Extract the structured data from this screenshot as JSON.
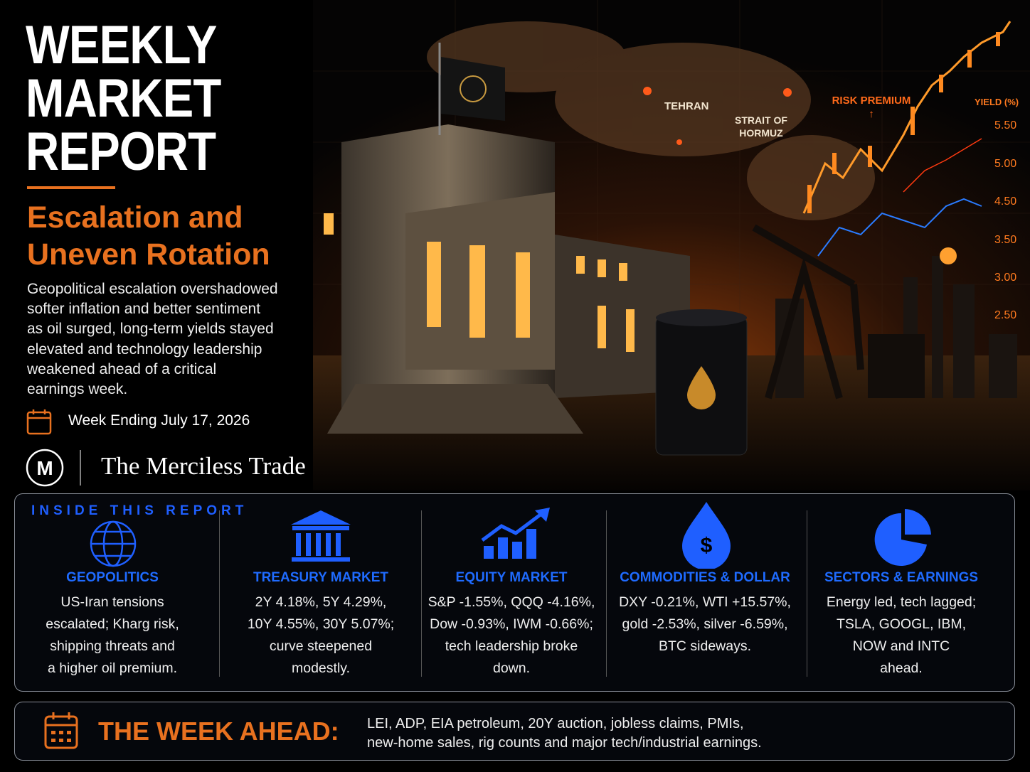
{
  "header": {
    "title_lines": [
      "WEEKLY",
      "MARKET",
      "REPORT"
    ],
    "subtitle_lines": [
      "Escalation and",
      "Uneven Rotation"
    ],
    "description_lines": [
      "Geopolitical escalation overshadowed",
      "softer inflation and better sentiment",
      "as oil surged, long-term yields stayed",
      "elevated and technology leadership",
      "weakened ahead of a critical",
      "earnings week."
    ],
    "date": "Week Ending July 17, 2026",
    "brand_initial": "M",
    "brand": "The Merciless Trade"
  },
  "illustration": {
    "map_labels": [
      "TEHRAN",
      "STRAIT OF HORMUZ",
      "RISK PREMIUM ↑"
    ],
    "axis_title": "YIELD (%)",
    "axis_labels": [
      "5.50",
      "5.00",
      "4.50",
      "3.50",
      "3.00",
      "2.50"
    ]
  },
  "inside": {
    "title": "INSIDE THIS REPORT",
    "sections": [
      {
        "title": "GEOPOLITICS",
        "lines": [
          "US-Iran tensions",
          "escalated; Kharg risk,",
          "shipping threats and",
          "a higher oil premium."
        ]
      },
      {
        "title": "TREASURY MARKET",
        "lines": [
          "2Y 4.18%, 5Y 4.29%,",
          "10Y 4.55%, 30Y 5.07%;",
          "curve steepened",
          "modestly."
        ]
      },
      {
        "title": "EQUITY MARKET",
        "lines": [
          "S&P -1.55%, QQQ -4.16%,",
          "Dow -0.93%, IWM -0.66%;",
          "tech leadership broke",
          "down."
        ]
      },
      {
        "title": "COMMODITIES & DOLLAR",
        "lines": [
          "DXY -0.21%, WTI +15.57%,",
          "gold -2.53%, silver -6.59%,",
          "BTC sideways."
        ]
      },
      {
        "title": "SECTORS & EARNINGS",
        "lines": [
          "Energy led, tech lagged;",
          "TSLA, GOOGL, IBM,",
          "NOW and INTC",
          "ahead."
        ]
      }
    ]
  },
  "week_ahead": {
    "label": "THE WEEK AHEAD:",
    "lines": [
      "LEI, ADP, EIA petroleum, 20Y auction, jobless claims, PMIs,",
      "new-home sales, rig counts and major tech/industrial earnings."
    ]
  }
}
